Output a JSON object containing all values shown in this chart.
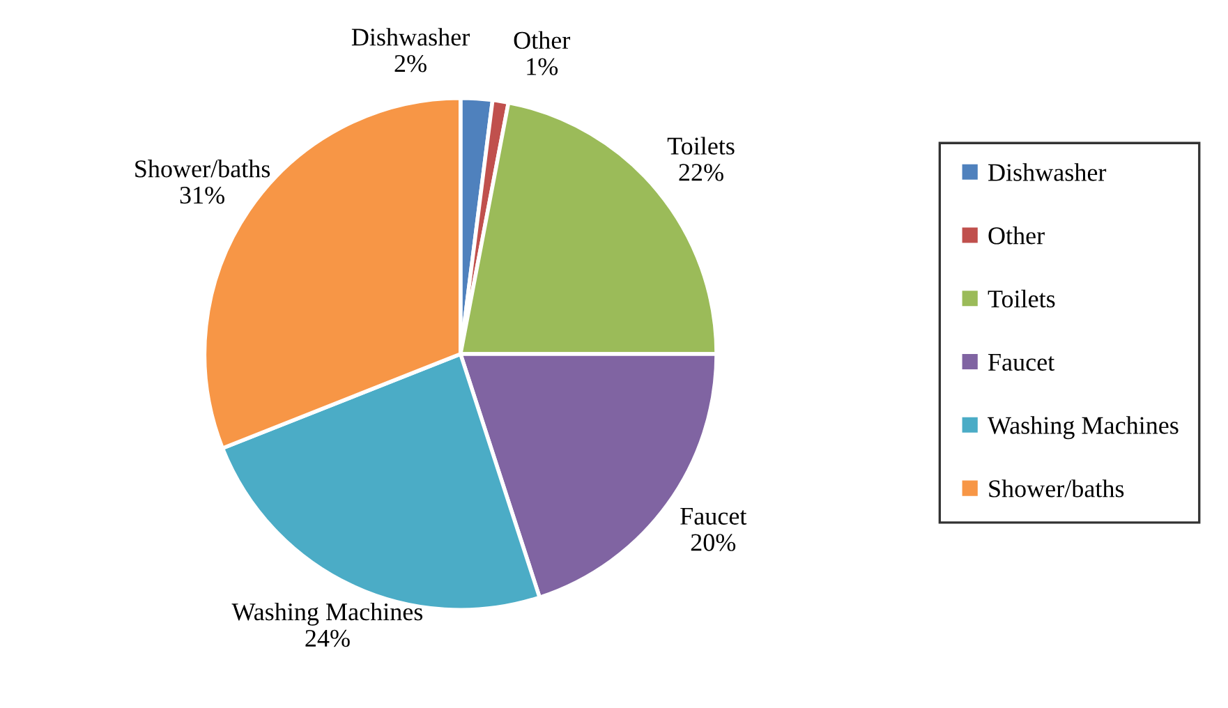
{
  "chart_data": {
    "type": "pie",
    "categories": [
      "Dishwasher",
      "Other",
      "Toilets",
      "Faucet",
      "Washing Machines",
      "Shower/baths"
    ],
    "values": [
      2,
      1,
      22,
      20,
      24,
      31
    ],
    "value_labels": [
      "2%",
      "1%",
      "22%",
      "20%",
      "24%",
      "31%"
    ],
    "colors": [
      "#4f81bd",
      "#c0504d",
      "#9bbb59",
      "#8064a2",
      "#4bacc6",
      "#f79646"
    ],
    "legend": "right"
  }
}
